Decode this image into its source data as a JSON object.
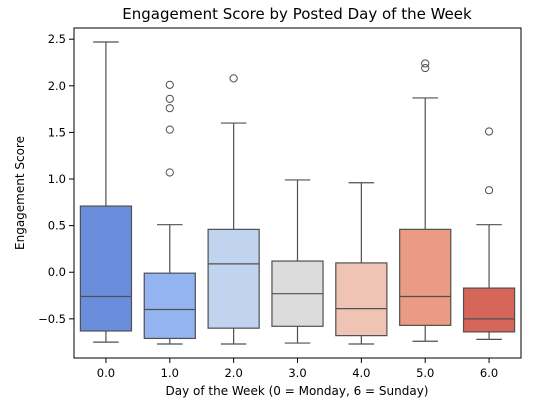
{
  "chart_data": {
    "type": "box",
    "title": "Engagement Score by Posted Day of the Week",
    "xlabel": "Day of the Week (0 = Monday, 6 = Sunday)",
    "ylabel": "Engagement Score",
    "ylim": [
      -0.92,
      2.62
    ],
    "yticks": [
      -0.5,
      0.0,
      0.5,
      1.0,
      1.5,
      2.0,
      2.5
    ],
    "ytick_labels": [
      "−0.5",
      "0.0",
      "0.5",
      "1.0",
      "1.5",
      "2.0",
      "2.5"
    ],
    "grid": false,
    "legend": "none",
    "categories": [
      "0.0",
      "1.0",
      "2.0",
      "3.0",
      "4.0",
      "5.0",
      "6.0"
    ],
    "boxes": [
      {
        "category": "0.0",
        "whisker_low": -0.75,
        "q1": -0.63,
        "median": -0.26,
        "q3": 0.71,
        "whisker_high": 2.47,
        "outliers": [],
        "color": "#6a8edc"
      },
      {
        "category": "1.0",
        "whisker_low": -0.77,
        "q1": -0.71,
        "median": -0.4,
        "q3": -0.01,
        "whisker_high": 0.51,
        "outliers": [
          1.07,
          1.53,
          1.76,
          1.86,
          2.01
        ],
        "color": "#93b4f1"
      },
      {
        "category": "2.0",
        "whisker_low": -0.77,
        "q1": -0.6,
        "median": 0.09,
        "q3": 0.46,
        "whisker_high": 1.6,
        "outliers": [
          2.08
        ],
        "color": "#c0d3ef"
      },
      {
        "category": "3.0",
        "whisker_low": -0.76,
        "q1": -0.58,
        "median": -0.23,
        "q3": 0.12,
        "whisker_high": 0.99,
        "outliers": [],
        "color": "#dcdcdc"
      },
      {
        "category": "4.0",
        "whisker_low": -0.77,
        "q1": -0.68,
        "median": -0.39,
        "q3": 0.1,
        "whisker_high": 0.96,
        "outliers": [],
        "color": "#f0c4b5"
      },
      {
        "category": "5.0",
        "whisker_low": -0.74,
        "q1": -0.57,
        "median": -0.26,
        "q3": 0.46,
        "whisker_high": 1.87,
        "outliers": [
          2.19,
          2.24
        ],
        "color": "#eb9a84"
      },
      {
        "category": "6.0",
        "whisker_low": -0.72,
        "q1": -0.64,
        "median": -0.5,
        "q3": -0.17,
        "whisker_high": 0.51,
        "outliers": [
          0.88,
          1.51
        ],
        "color": "#d6665a"
      }
    ]
  }
}
